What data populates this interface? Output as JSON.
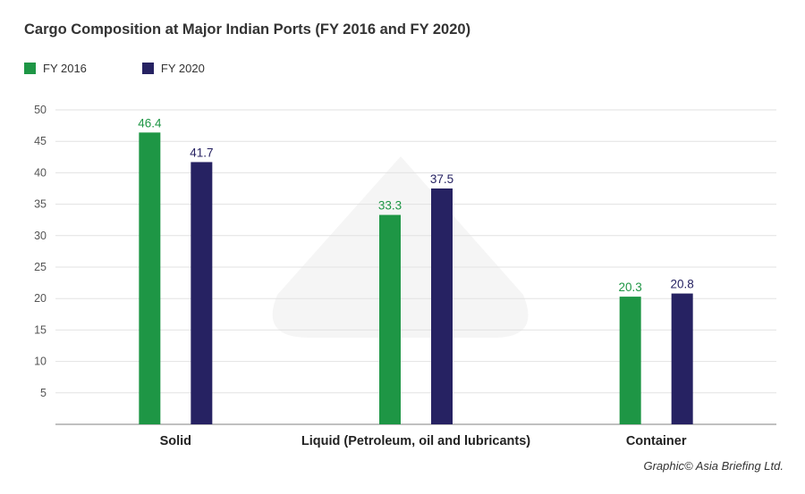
{
  "chart_data": {
    "type": "bar",
    "title": "Cargo Composition at Major Indian Ports (FY 2016 and FY 2020)",
    "categories": [
      "Solid",
      "Liquid (Petroleum, oil and lubricants)",
      "Container"
    ],
    "series": [
      {
        "name": "FY 2016",
        "color": "#1e9645",
        "values": [
          46.4,
          33.3,
          20.3
        ],
        "labels": [
          "46.4",
          "33.3",
          "20.3"
        ]
      },
      {
        "name": "FY 2020",
        "color": "#262262",
        "values": [
          41.7,
          37.5,
          20.8
        ],
        "labels": [
          "41.7",
          "37.5",
          "20.8"
        ]
      }
    ],
    "ylim": [
      0,
      50
    ],
    "yticks": [
      5,
      10,
      15,
      20,
      25,
      30,
      35,
      40,
      45,
      50
    ],
    "grid": true,
    "legend_position": "top-left",
    "xlabel": "",
    "ylabel": ""
  },
  "credit": "Graphic© Asia Briefing Ltd."
}
